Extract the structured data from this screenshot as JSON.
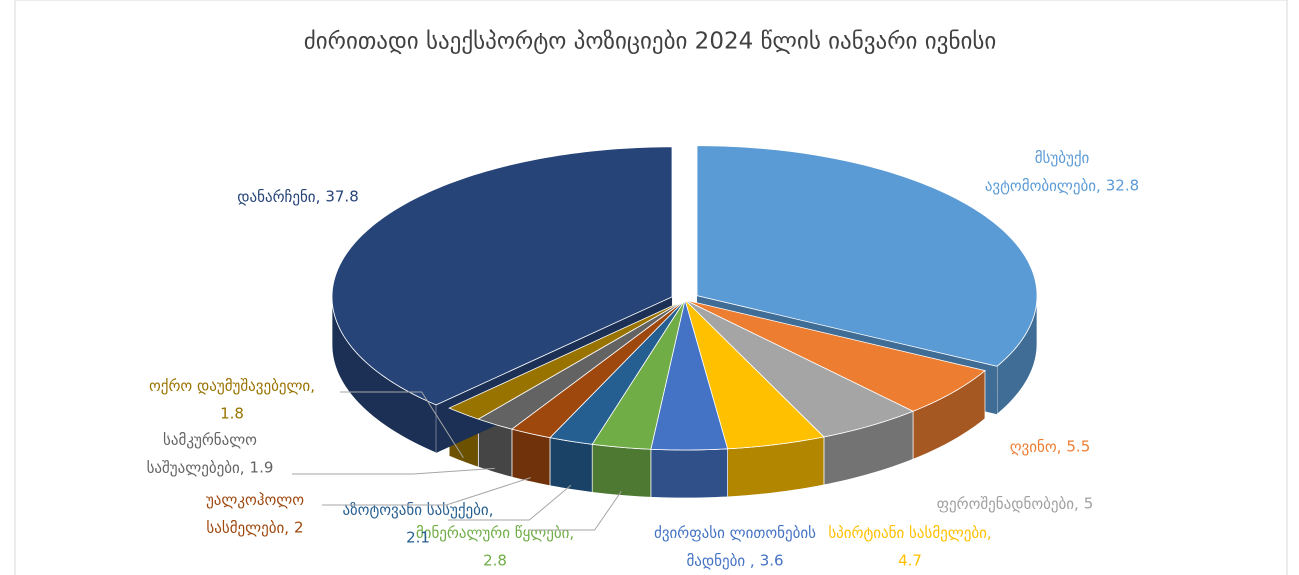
{
  "chart_data": {
    "type": "pie3d",
    "title": "ძირითადი საექსპორტო პოზიციები 2024 წლის იანვარი ივნისი",
    "categories": [
      "მსუბუქი ავტომობილები,",
      "ღვინო,",
      "ფეროშენადნობები,",
      "სპირტიანი სასმელები,",
      "ძვირფასი ლითონების მადნები ,",
      "მინერალური წყლები,",
      "აზოტოვანი სასუქები,",
      "უალკოჰოლო სასმელები,",
      "სამკურნალო საშუალებები,",
      "ოქრო დაუმუშავებელი,",
      "დანარჩენი,"
    ],
    "values": [
      32.8,
      5.5,
      5,
      4.7,
      3.6,
      2.8,
      2.1,
      2,
      1.9,
      1.8,
      37.8
    ],
    "colors": [
      "#5b9bd5",
      "#ed7d31",
      "#a5a5a5",
      "#ffc000",
      "#4472c4",
      "#70ad47",
      "#255e91",
      "#9e480e",
      "#636363",
      "#997300",
      "#264478"
    ]
  }
}
